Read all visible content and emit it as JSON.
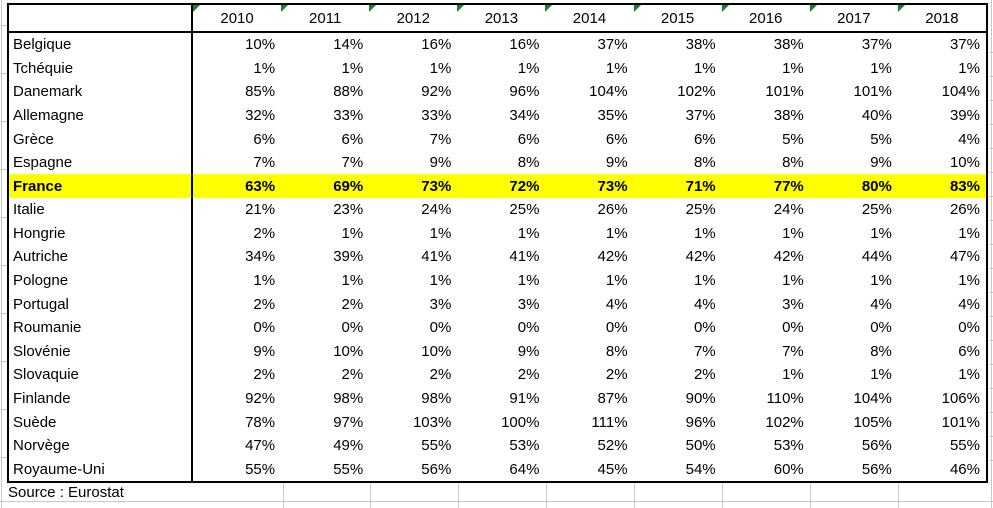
{
  "app": {
    "kind": "spreadsheet-screenshot"
  },
  "colors": {
    "highlight_row": "#ffff00",
    "error_triangle": "#1e7b34",
    "table_border": "#000000",
    "gridline": "#c9c9c9"
  },
  "table": {
    "corner_label": "",
    "years": [
      "2010",
      "2011",
      "2012",
      "2013",
      "2014",
      "2015",
      "2016",
      "2017",
      "2018"
    ],
    "rows": [
      {
        "country": "Belgique",
        "values": [
          "10%",
          "14%",
          "16%",
          "16%",
          "37%",
          "38%",
          "38%",
          "37%",
          "37%"
        ],
        "highlight": false
      },
      {
        "country": "Tchéquie",
        "values": [
          "1%",
          "1%",
          "1%",
          "1%",
          "1%",
          "1%",
          "1%",
          "1%",
          "1%"
        ],
        "highlight": false
      },
      {
        "country": "Danemark",
        "values": [
          "85%",
          "88%",
          "92%",
          "96%",
          "104%",
          "102%",
          "101%",
          "101%",
          "104%"
        ],
        "highlight": false
      },
      {
        "country": "Allemagne",
        "values": [
          "32%",
          "33%",
          "33%",
          "34%",
          "35%",
          "37%",
          "38%",
          "40%",
          "39%"
        ],
        "highlight": false
      },
      {
        "country": "Grèce",
        "values": [
          "6%",
          "6%",
          "7%",
          "6%",
          "6%",
          "6%",
          "5%",
          "5%",
          "4%"
        ],
        "highlight": false
      },
      {
        "country": "Espagne",
        "values": [
          "7%",
          "7%",
          "9%",
          "8%",
          "9%",
          "8%",
          "8%",
          "9%",
          "10%"
        ],
        "highlight": false
      },
      {
        "country": "France",
        "values": [
          "63%",
          "69%",
          "73%",
          "72%",
          "73%",
          "71%",
          "77%",
          "80%",
          "83%"
        ],
        "highlight": true
      },
      {
        "country": "Italie",
        "values": [
          "21%",
          "23%",
          "24%",
          "25%",
          "26%",
          "25%",
          "24%",
          "25%",
          "26%"
        ],
        "highlight": false
      },
      {
        "country": "Hongrie",
        "values": [
          "2%",
          "1%",
          "1%",
          "1%",
          "1%",
          "1%",
          "1%",
          "1%",
          "1%"
        ],
        "highlight": false
      },
      {
        "country": "Autriche",
        "values": [
          "34%",
          "39%",
          "41%",
          "41%",
          "42%",
          "42%",
          "42%",
          "44%",
          "47%"
        ],
        "highlight": false
      },
      {
        "country": "Pologne",
        "values": [
          "1%",
          "1%",
          "1%",
          "1%",
          "1%",
          "1%",
          "1%",
          "1%",
          "1%"
        ],
        "highlight": false
      },
      {
        "country": "Portugal",
        "values": [
          "2%",
          "2%",
          "3%",
          "3%",
          "4%",
          "4%",
          "3%",
          "4%",
          "4%"
        ],
        "highlight": false
      },
      {
        "country": "Roumanie",
        "values": [
          "0%",
          "0%",
          "0%",
          "0%",
          "0%",
          "0%",
          "0%",
          "0%",
          "0%"
        ],
        "highlight": false
      },
      {
        "country": "Slovénie",
        "values": [
          "9%",
          "10%",
          "10%",
          "9%",
          "8%",
          "7%",
          "7%",
          "8%",
          "6%"
        ],
        "highlight": false
      },
      {
        "country": "Slovaquie",
        "values": [
          "2%",
          "2%",
          "2%",
          "2%",
          "2%",
          "2%",
          "1%",
          "1%",
          "1%"
        ],
        "highlight": false
      },
      {
        "country": "Finlande",
        "values": [
          "92%",
          "98%",
          "98%",
          "91%",
          "87%",
          "90%",
          "110%",
          "104%",
          "106%"
        ],
        "highlight": false
      },
      {
        "country": "Suède",
        "values": [
          "78%",
          "97%",
          "103%",
          "100%",
          "111%",
          "96%",
          "102%",
          "105%",
          "101%"
        ],
        "highlight": false
      },
      {
        "country": "Norvège",
        "values": [
          "47%",
          "49%",
          "55%",
          "53%",
          "52%",
          "50%",
          "53%",
          "56%",
          "55%"
        ],
        "highlight": false
      },
      {
        "country": "Royaume-Uni",
        "values": [
          "55%",
          "55%",
          "56%",
          "64%",
          "45%",
          "54%",
          "60%",
          "56%",
          "46%"
        ],
        "highlight": false
      }
    ]
  },
  "footer": {
    "source_label": "Source : Eurostat"
  }
}
